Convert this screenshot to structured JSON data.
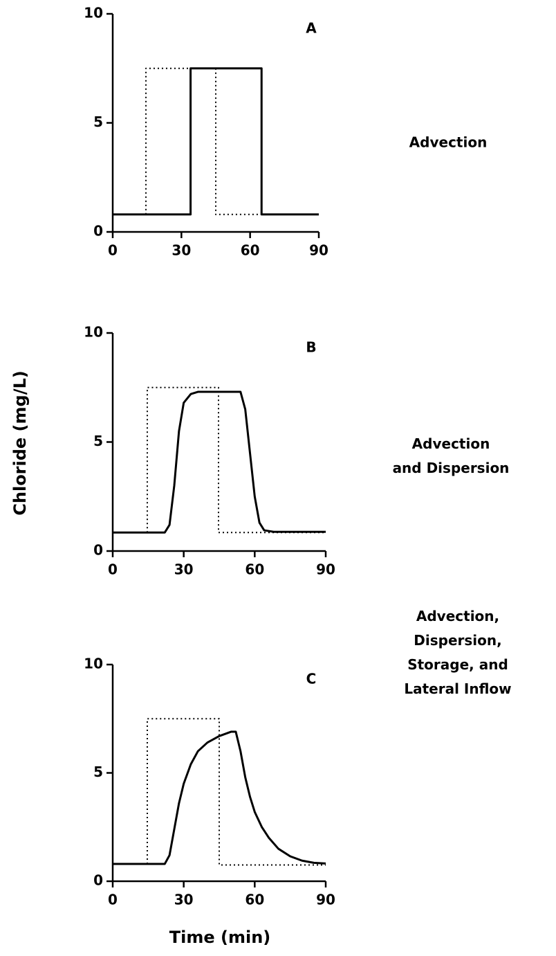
{
  "ylabel": "Chloride (mg/L)",
  "xlabel": "Time (min)",
  "chart_data": [
    {
      "type": "line",
      "panel": "A",
      "annotation": [
        "Advection"
      ],
      "xlim": [
        0,
        90
      ],
      "ylim": [
        0,
        10
      ],
      "xticks": [
        0,
        30,
        60,
        90
      ],
      "yticks": [
        0,
        5,
        10
      ],
      "series": [
        {
          "color": "#000000",
          "dash": "dotted",
          "x": [
            14.5,
            14.5,
            45,
            45,
            65
          ],
          "values": [
            0.8,
            7.5,
            7.5,
            0.8,
            0.8
          ]
        },
        {
          "color": "#000000",
          "dash": "solid",
          "x": [
            0,
            34,
            34,
            65,
            65,
            90
          ],
          "values": [
            0.8,
            0.8,
            7.5,
            7.5,
            0.8,
            0.8
          ]
        }
      ]
    },
    {
      "type": "line",
      "panel": "B",
      "annotation": [
        "Advection",
        "and Dispersion"
      ],
      "xlim": [
        0,
        90
      ],
      "ylim": [
        0,
        10
      ],
      "xticks": [
        0,
        30,
        60,
        90
      ],
      "yticks": [
        0,
        5,
        10
      ],
      "series": [
        {
          "color": "#000000",
          "dash": "dotted",
          "x": [
            14.6,
            14.6,
            44.7,
            44.7,
            90
          ],
          "values": [
            0.85,
            7.5,
            7.5,
            0.85,
            0.85
          ]
        },
        {
          "color": "#000000",
          "dash": "solid",
          "x": [
            0,
            22,
            24,
            26,
            28,
            30,
            33,
            36,
            54,
            56,
            58,
            60,
            62,
            64,
            68,
            90
          ],
          "values": [
            0.85,
            0.85,
            1.2,
            3,
            5.5,
            6.8,
            7.2,
            7.3,
            7.3,
            6.5,
            4.5,
            2.5,
            1.3,
            0.95,
            0.88,
            0.88
          ]
        }
      ]
    },
    {
      "type": "line",
      "panel": "C",
      "annotation": [
        "Advection,",
        "Dispersion,",
        "Storage, and",
        "Lateral Inflow"
      ],
      "xlim": [
        0,
        90
      ],
      "ylim": [
        0,
        10
      ],
      "xticks": [
        0,
        30,
        60,
        90
      ],
      "yticks": [
        0,
        5,
        10
      ],
      "series": [
        {
          "color": "#000000",
          "dash": "dotted",
          "x": [
            14.6,
            14.6,
            45,
            45,
            90
          ],
          "values": [
            0.8,
            7.5,
            7.5,
            0.75,
            0.75
          ]
        },
        {
          "color": "#000000",
          "dash": "solid",
          "x": [
            0,
            22,
            24,
            26,
            28,
            30,
            33,
            36,
            40,
            45,
            50,
            52,
            54,
            56,
            58,
            60,
            63,
            66,
            70,
            75,
            80,
            85,
            90
          ],
          "values": [
            0.8,
            0.8,
            1.2,
            2.4,
            3.6,
            4.5,
            5.4,
            6,
            6.4,
            6.7,
            6.9,
            6.9,
            6,
            4.8,
            3.9,
            3.2,
            2.5,
            2,
            1.5,
            1.15,
            0.95,
            0.85,
            0.82
          ]
        }
      ]
    }
  ]
}
